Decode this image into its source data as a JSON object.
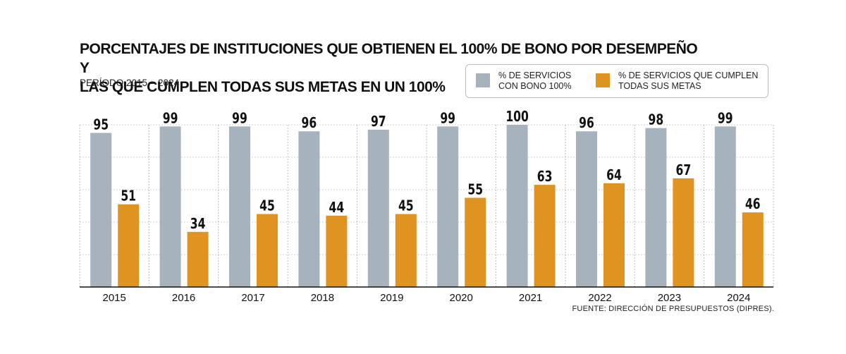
{
  "title_line1": "PORCENTAJES DE INSTITUCIONES QUE OBTIENEN EL 100% DE BONO POR DESEMPEÑO Y",
  "title_line2": "LAS QUE CUMPLEN TODAS SUS METAS EN UN 100%",
  "subtitle": "PERÍODO 2015 – 2024",
  "source": "FUENTE: DIRECCIÓN DE PRESUPUESTOS (DIPRES).",
  "colors": {
    "series_bono": "#a6b2bc",
    "series_metas": "#df9321"
  },
  "chart_data": {
    "type": "bar",
    "categories": [
      "2015",
      "2016",
      "2017",
      "2018",
      "2019",
      "2020",
      "2021",
      "2022",
      "2023",
      "2024"
    ],
    "series": [
      {
        "name": "% DE SERVICIOS\nCON BONO 100%",
        "color": "#a6b2bc",
        "values": [
          95,
          99,
          99,
          96,
          97,
          99,
          100,
          96,
          98,
          99
        ]
      },
      {
        "name": "% DE SERVICIOS QUE CUMPLEN\nTODAS SUS METAS",
        "color": "#df9321",
        "values": [
          51,
          34,
          45,
          44,
          45,
          55,
          63,
          64,
          67,
          46
        ]
      }
    ],
    "ylim": [
      0,
      100
    ],
    "grid": true,
    "legend_position": "top-right"
  }
}
